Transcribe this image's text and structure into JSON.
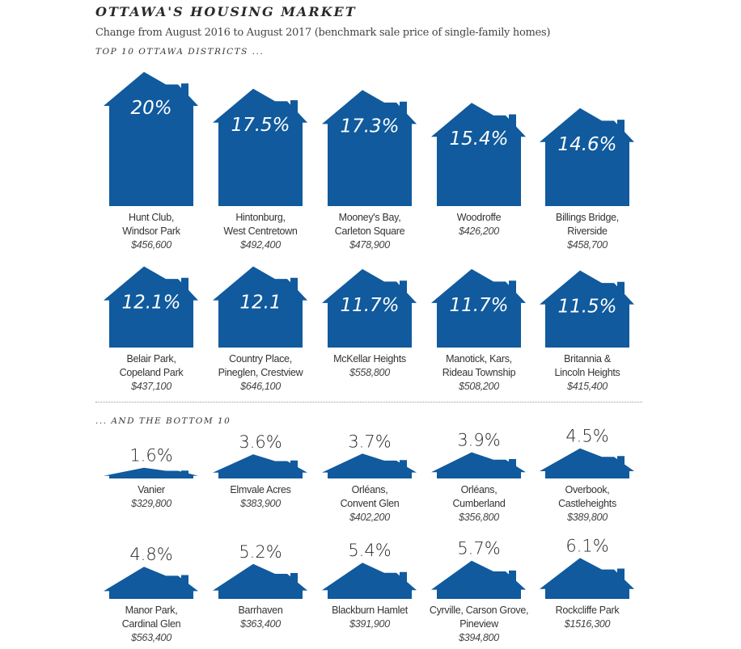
{
  "title": "OTTAWA'S HOUSING MARKET",
  "subtitle": "Change from August 2016 to August 2017 (benchmark sale price of single-family homes)",
  "top_heading": "TOP 10 OTTAWA DISTRICTS ...",
  "bottom_heading": "... AND THE BOTTOM 10",
  "colors": {
    "house": "#105a9d",
    "inside_text": "#ffffff",
    "outside_text": "#2a2a2a"
  },
  "chart_data": {
    "type": "bar",
    "style": "house pictogram, height proportional to value",
    "unit": "%",
    "groups": [
      {
        "heading": "TOP 10 OTTAWA DISTRICTS ...",
        "items": [
          {
            "label": "20%",
            "value": 20,
            "name": [
              "Hunt Club,",
              "Windsor Park"
            ],
            "price": "$456,600"
          },
          {
            "label": "17.5%",
            "value": 17.5,
            "name": [
              "Hintonburg,",
              "West Centretown"
            ],
            "price": "$492,400"
          },
          {
            "label": "17.3%",
            "value": 17.3,
            "name": [
              "Mooney's Bay,",
              "Carleton Square"
            ],
            "price": "$478,900"
          },
          {
            "label": "15.4%",
            "value": 15.4,
            "name": [
              "Woodroffe"
            ],
            "price": "$426,200"
          },
          {
            "label": "14.6%",
            "value": 14.6,
            "name": [
              "Billings Bridge,",
              "Riverside"
            ],
            "price": "$458,700"
          },
          {
            "label": "12.1%",
            "value": 12.1,
            "name": [
              "Belair Park,",
              "Copeland Park"
            ],
            "price": "$437,100"
          },
          {
            "label": "12.1",
            "value": 12.1,
            "name": [
              "Country Place,",
              "Pineglen, Crestview"
            ],
            "price": "$646,100"
          },
          {
            "label": "11.7%",
            "value": 11.7,
            "name": [
              "McKellar Heights"
            ],
            "price": "$558,800"
          },
          {
            "label": "11.7%",
            "value": 11.7,
            "name": [
              "Manotick, Kars,",
              "Rideau Township"
            ],
            "price": "$508,200"
          },
          {
            "label": "11.5%",
            "value": 11.5,
            "name": [
              "Britannia &",
              "Lincoln Heights"
            ],
            "price": "$415,400"
          }
        ]
      },
      {
        "heading": "... AND THE BOTTOM 10",
        "items": [
          {
            "label": "1.6%",
            "value": 1.6,
            "name": [
              "Vanier"
            ],
            "price": "$329,800"
          },
          {
            "label": "3.6%",
            "value": 3.6,
            "name": [
              "Elmvale Acres"
            ],
            "price": "$383,900"
          },
          {
            "label": "3.7%",
            "value": 3.7,
            "name": [
              "Orléans,",
              "Convent Glen"
            ],
            "price": "$402,200"
          },
          {
            "label": "3.9%",
            "value": 3.9,
            "name": [
              "Orléans,",
              "Cumberland"
            ],
            "price": "$356,800"
          },
          {
            "label": "4.5%",
            "value": 4.5,
            "name": [
              "Overbook,",
              "Castleheights"
            ],
            "price": "$389,800"
          },
          {
            "label": "4.8%",
            "value": 4.8,
            "name": [
              "Manor Park,",
              "Cardinal Glen"
            ],
            "price": "$563,400"
          },
          {
            "label": "5.2%",
            "value": 5.2,
            "name": [
              "Barrhaven"
            ],
            "price": "$363,400"
          },
          {
            "label": "5.4%",
            "value": 5.4,
            "name": [
              "Blackburn Hamlet"
            ],
            "price": "$391,900"
          },
          {
            "label": "5.7%",
            "value": 5.7,
            "name": [
              "Cyrville, Carson Grove,",
              "Pineview"
            ],
            "price": "$394,800"
          },
          {
            "label": "6.1%",
            "value": 6.1,
            "name": [
              "Rockcliffe Park"
            ],
            "price": "$1516,300"
          }
        ]
      }
    ]
  }
}
